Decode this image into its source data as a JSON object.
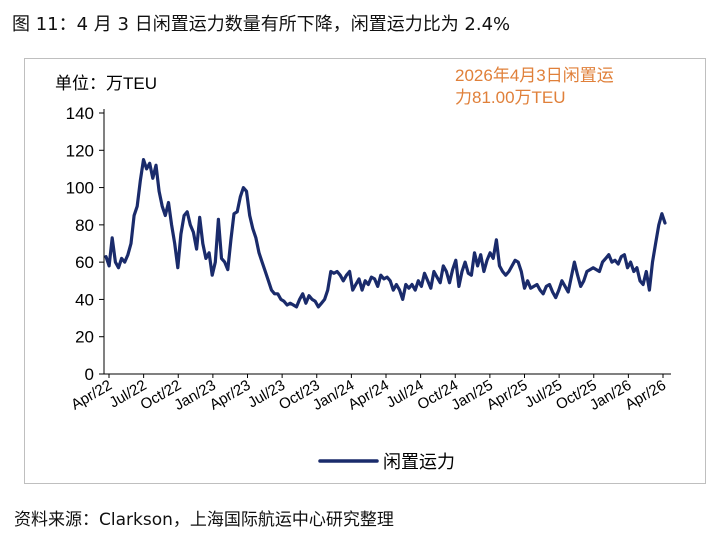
{
  "figure_title": "图 11：4 月 3 日闲置运力数量有所下降，闲置运力比为 2.4%",
  "source_text": "资料来源：Clarkson，上海国际航运中心研究整理",
  "colors": {
    "line": "#1a2b6b",
    "annotation": "#e0803a",
    "axis": "#000000"
  },
  "chart_data": {
    "type": "line",
    "unit_label": "单位：万TEU",
    "annotation": [
      "2026年4月3日闲置运",
      "力81.00万TEU"
    ],
    "ylim": [
      0,
      140
    ],
    "yticks": [
      0,
      20,
      40,
      60,
      80,
      100,
      120,
      140
    ],
    "xticks": [
      "Apr/22",
      "Jul/22",
      "Oct/22",
      "Jan/23",
      "Apr/23",
      "Jul/23",
      "Oct/23",
      "Jan/24",
      "Apr/24",
      "Jul/24",
      "Oct/24",
      "Jan/25",
      "Apr/25",
      "Jul/25",
      "Oct/25",
      "Jan/26",
      "Apr/26"
    ],
    "series": [
      {
        "name": "闲置运力",
        "values": [
          63,
          58,
          73,
          60,
          57,
          62,
          60,
          64,
          70,
          85,
          90,
          104,
          115,
          110,
          113,
          105,
          112,
          98,
          90,
          85,
          92,
          80,
          70,
          57,
          75,
          85,
          87,
          80,
          76,
          67,
          84,
          70,
          62,
          65,
          53,
          60,
          83,
          62,
          60,
          56,
          72,
          86,
          87,
          95,
          100,
          98,
          85,
          78,
          73,
          65,
          60,
          55,
          50,
          45,
          43,
          43,
          40,
          39,
          37,
          38,
          37,
          36,
          40,
          43,
          38,
          42,
          40,
          39,
          36,
          38,
          40,
          45,
          55,
          54,
          55,
          53,
          50,
          53,
          55,
          45,
          48,
          51,
          45,
          50,
          48,
          52,
          51,
          47,
          53,
          51,
          52,
          50,
          45,
          48,
          45,
          40,
          48,
          46,
          48,
          45,
          50,
          47,
          54,
          50,
          46,
          55,
          52,
          49,
          58,
          55,
          49,
          56,
          61,
          47,
          55,
          60,
          54,
          53,
          65,
          58,
          64,
          55,
          61,
          65,
          62,
          72,
          58,
          55,
          53,
          55,
          58,
          61,
          60,
          55,
          46,
          50,
          46,
          47,
          48,
          45,
          43,
          47,
          48,
          44,
          41,
          45,
          50,
          47,
          44,
          52,
          60,
          53,
          47,
          50,
          55,
          56,
          57,
          56,
          55,
          60,
          62,
          64,
          60,
          61,
          59,
          63,
          64,
          57,
          60,
          55,
          57,
          50,
          48,
          55,
          45,
          60,
          70,
          80,
          86,
          81
        ]
      }
    ]
  }
}
